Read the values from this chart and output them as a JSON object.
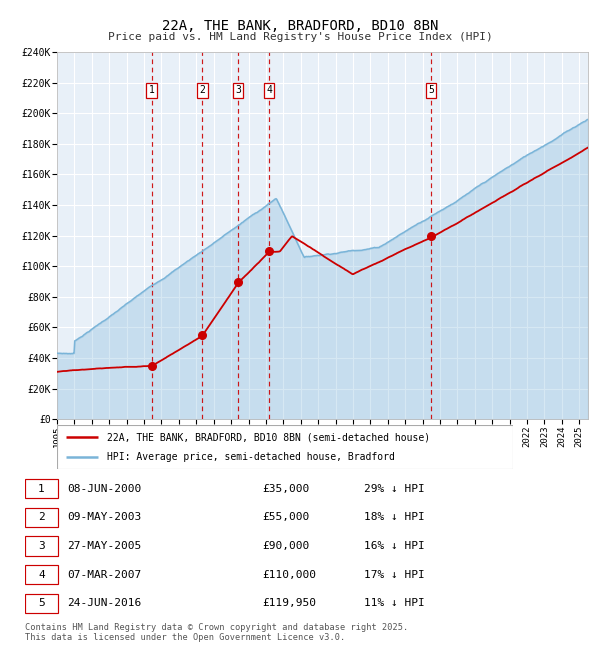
{
  "title": "22A, THE BANK, BRADFORD, BD10 8BN",
  "subtitle": "Price paid vs. HM Land Registry's House Price Index (HPI)",
  "hpi_color": "#7ab4d8",
  "price_color": "#cc0000",
  "plot_bg": "#e8f0f8",
  "grid_color": "#ffffff",
  "vline_color": "#cc0000",
  "ylim": [
    0,
    240000
  ],
  "yticks": [
    0,
    20000,
    40000,
    60000,
    80000,
    100000,
    120000,
    140000,
    160000,
    180000,
    200000,
    220000,
    240000
  ],
  "sales": [
    {
      "label": "1",
      "price": 35000,
      "x": 2000.44
    },
    {
      "label": "2",
      "price": 55000,
      "x": 2003.35
    },
    {
      "label": "3",
      "price": 90000,
      "x": 2005.4
    },
    {
      "label": "4",
      "price": 110000,
      "x": 2007.18
    },
    {
      "label": "5",
      "price": 119950,
      "x": 2016.48
    }
  ],
  "legend_entries": [
    {
      "label": "22A, THE BANK, BRADFORD, BD10 8BN (semi-detached house)",
      "color": "#cc0000"
    },
    {
      "label": "HPI: Average price, semi-detached house, Bradford",
      "color": "#7ab4d8"
    }
  ],
  "table_rows": [
    {
      "num": "1",
      "date": "08-JUN-2000",
      "price": "£35,000",
      "pct": "29% ↓ HPI"
    },
    {
      "num": "2",
      "date": "09-MAY-2003",
      "price": "£55,000",
      "pct": "18% ↓ HPI"
    },
    {
      "num": "3",
      "date": "27-MAY-2005",
      "price": "£90,000",
      "pct": "16% ↓ HPI"
    },
    {
      "num": "4",
      "date": "07-MAR-2007",
      "price": "£110,000",
      "pct": "17% ↓ HPI"
    },
    {
      "num": "5",
      "date": "24-JUN-2016",
      "price": "£119,950",
      "pct": "11% ↓ HPI"
    }
  ],
  "footnote": "Contains HM Land Registry data © Crown copyright and database right 2025.\nThis data is licensed under the Open Government Licence v3.0.",
  "xmin": 1995.0,
  "xmax": 2025.5
}
